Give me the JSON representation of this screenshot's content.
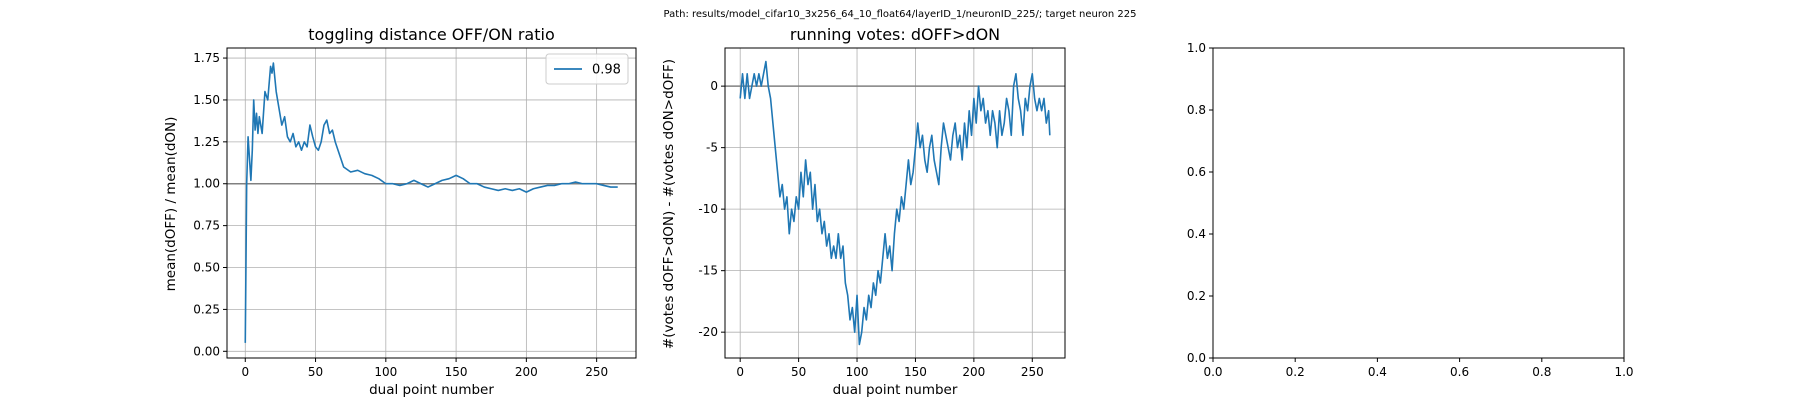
{
  "figure": {
    "suptitle": "Path: results/model_cifar10_3x256_64_10_float64/layerID_1/neuronID_225/; target neuron 225"
  },
  "colors": {
    "series": "#1f77b4",
    "reference_line": "#808080",
    "grid": "#b0b0b0",
    "axes": "#000000",
    "background": "#ffffff"
  },
  "chart_data": [
    {
      "type": "line",
      "title": "toggling distance OFF/ON ratio",
      "xlabel": "dual point number",
      "ylabel": "mean(dOFF) / mean(dON)",
      "xlim": [
        -13,
        278
      ],
      "ylim": [
        -0.04,
        1.81
      ],
      "xticks": [
        0,
        50,
        100,
        150,
        200,
        250
      ],
      "yticks": [
        0.0,
        0.25,
        0.5,
        0.75,
        1.0,
        1.25,
        1.5,
        1.75
      ],
      "ytick_labels": [
        "0.00",
        "0.25",
        "0.50",
        "0.75",
        "1.00",
        "1.25",
        "1.50",
        "1.75"
      ],
      "grid": true,
      "legend": {
        "position": "top-right",
        "entries": [
          "0.98"
        ]
      },
      "hline": 1.0,
      "series": [
        {
          "name": "0.98",
          "x": [
            0,
            1,
            2,
            3,
            4,
            5,
            6,
            7,
            8,
            9,
            10,
            12,
            14,
            16,
            18,
            19,
            20,
            22,
            24,
            26,
            28,
            30,
            32,
            34,
            36,
            38,
            40,
            42,
            44,
            46,
            48,
            50,
            52,
            54,
            56,
            58,
            60,
            62,
            64,
            66,
            70,
            75,
            80,
            85,
            90,
            95,
            100,
            105,
            110,
            115,
            120,
            125,
            130,
            135,
            140,
            145,
            150,
            155,
            160,
            165,
            170,
            175,
            180,
            185,
            190,
            195,
            200,
            205,
            210,
            215,
            220,
            225,
            230,
            235,
            240,
            245,
            250,
            255,
            260,
            265
          ],
          "y": [
            0.05,
            1.0,
            1.28,
            1.15,
            1.02,
            1.2,
            1.5,
            1.32,
            1.42,
            1.3,
            1.4,
            1.3,
            1.55,
            1.5,
            1.7,
            1.66,
            1.72,
            1.55,
            1.45,
            1.35,
            1.4,
            1.28,
            1.25,
            1.3,
            1.22,
            1.25,
            1.2,
            1.25,
            1.22,
            1.35,
            1.28,
            1.22,
            1.2,
            1.25,
            1.35,
            1.38,
            1.3,
            1.32,
            1.25,
            1.2,
            1.1,
            1.07,
            1.08,
            1.06,
            1.05,
            1.03,
            1.0,
            1.0,
            0.99,
            1.0,
            1.02,
            1.0,
            0.98,
            1.0,
            1.02,
            1.03,
            1.05,
            1.03,
            1.0,
            1.0,
            0.98,
            0.97,
            0.96,
            0.97,
            0.96,
            0.97,
            0.95,
            0.97,
            0.98,
            0.99,
            0.99,
            1.0,
            1.0,
            1.01,
            1.0,
            1.0,
            1.0,
            0.99,
            0.98,
            0.98
          ]
        }
      ]
    },
    {
      "type": "line",
      "title": "running votes: dOFF>dON",
      "xlabel": "dual point number",
      "ylabel": "#(votes dOFF>dON) - #(votes dON>dOFF)",
      "xlim": [
        -13,
        278
      ],
      "ylim": [
        -22.1,
        3.1
      ],
      "xticks": [
        0,
        50,
        100,
        150,
        200,
        250
      ],
      "yticks": [
        0,
        -5,
        -10,
        -15,
        -20
      ],
      "grid": true,
      "hline": 0,
      "series": [
        {
          "x": [
            0,
            2,
            4,
            6,
            8,
            10,
            12,
            14,
            16,
            18,
            20,
            22,
            24,
            26,
            28,
            30,
            32,
            34,
            36,
            38,
            40,
            42,
            44,
            46,
            48,
            50,
            52,
            54,
            56,
            58,
            60,
            62,
            64,
            66,
            68,
            70,
            72,
            74,
            76,
            78,
            80,
            82,
            84,
            86,
            88,
            90,
            92,
            94,
            96,
            98,
            100,
            102,
            104,
            106,
            108,
            110,
            112,
            114,
            116,
            118,
            120,
            122,
            124,
            126,
            128,
            130,
            132,
            134,
            136,
            138,
            140,
            142,
            144,
            146,
            148,
            150,
            152,
            154,
            156,
            158,
            160,
            162,
            164,
            166,
            168,
            170,
            172,
            174,
            176,
            178,
            180,
            182,
            184,
            186,
            188,
            190,
            192,
            194,
            196,
            198,
            200,
            202,
            204,
            206,
            208,
            210,
            212,
            214,
            216,
            218,
            220,
            222,
            224,
            226,
            228,
            230,
            232,
            234,
            236,
            238,
            240,
            242,
            244,
            246,
            248,
            250,
            252,
            254,
            256,
            258,
            260,
            262,
            264,
            265
          ],
          "y": [
            -1,
            1,
            -1,
            1,
            -1,
            0,
            1,
            0,
            1,
            0,
            1,
            2,
            0,
            -1,
            -3,
            -5,
            -7,
            -9,
            -8,
            -10,
            -9,
            -12,
            -10,
            -11,
            -9,
            -10,
            -7,
            -9,
            -6,
            -8,
            -7,
            -10,
            -8,
            -11,
            -10,
            -12,
            -11,
            -13,
            -12,
            -14,
            -13,
            -14,
            -12,
            -14,
            -13,
            -16,
            -17,
            -19,
            -18,
            -20,
            -17,
            -21,
            -20,
            -18,
            -19,
            -17,
            -18,
            -16,
            -17,
            -15,
            -16,
            -14,
            -12,
            -14,
            -13,
            -15,
            -12,
            -10,
            -11,
            -9,
            -10,
            -8,
            -6,
            -8,
            -7,
            -5,
            -3,
            -5,
            -4,
            -6,
            -7,
            -5,
            -4,
            -6,
            -7,
            -8,
            -5,
            -3,
            -4,
            -5,
            -6,
            -4,
            -3,
            -5,
            -4,
            -6,
            -3,
            -5,
            -2,
            -4,
            -1,
            -3,
            0,
            -2,
            -1,
            -3,
            -2,
            -4,
            -2,
            -3,
            -5,
            -2,
            -4,
            -3,
            -1,
            -2,
            -4,
            0,
            1,
            -1,
            -2,
            -4,
            -1,
            -2,
            0,
            1,
            -1,
            -2,
            -1,
            -2,
            -1,
            -3,
            -2,
            -4
          ]
        }
      ]
    },
    {
      "type": "line",
      "title": "",
      "xlabel": "",
      "ylabel": "",
      "xlim": [
        0,
        1
      ],
      "ylim": [
        0,
        1
      ],
      "xticks": [
        0.0,
        0.2,
        0.4,
        0.6,
        0.8,
        1.0
      ],
      "yticks": [
        0.0,
        0.2,
        0.4,
        0.6,
        0.8,
        1.0
      ],
      "xtick_labels": [
        "0.0",
        "0.2",
        "0.4",
        "0.6",
        "0.8",
        "1.0"
      ],
      "ytick_labels": [
        "0.0",
        "0.2",
        "0.4",
        "0.6",
        "0.8",
        "1.0"
      ],
      "grid": false,
      "series": []
    }
  ]
}
